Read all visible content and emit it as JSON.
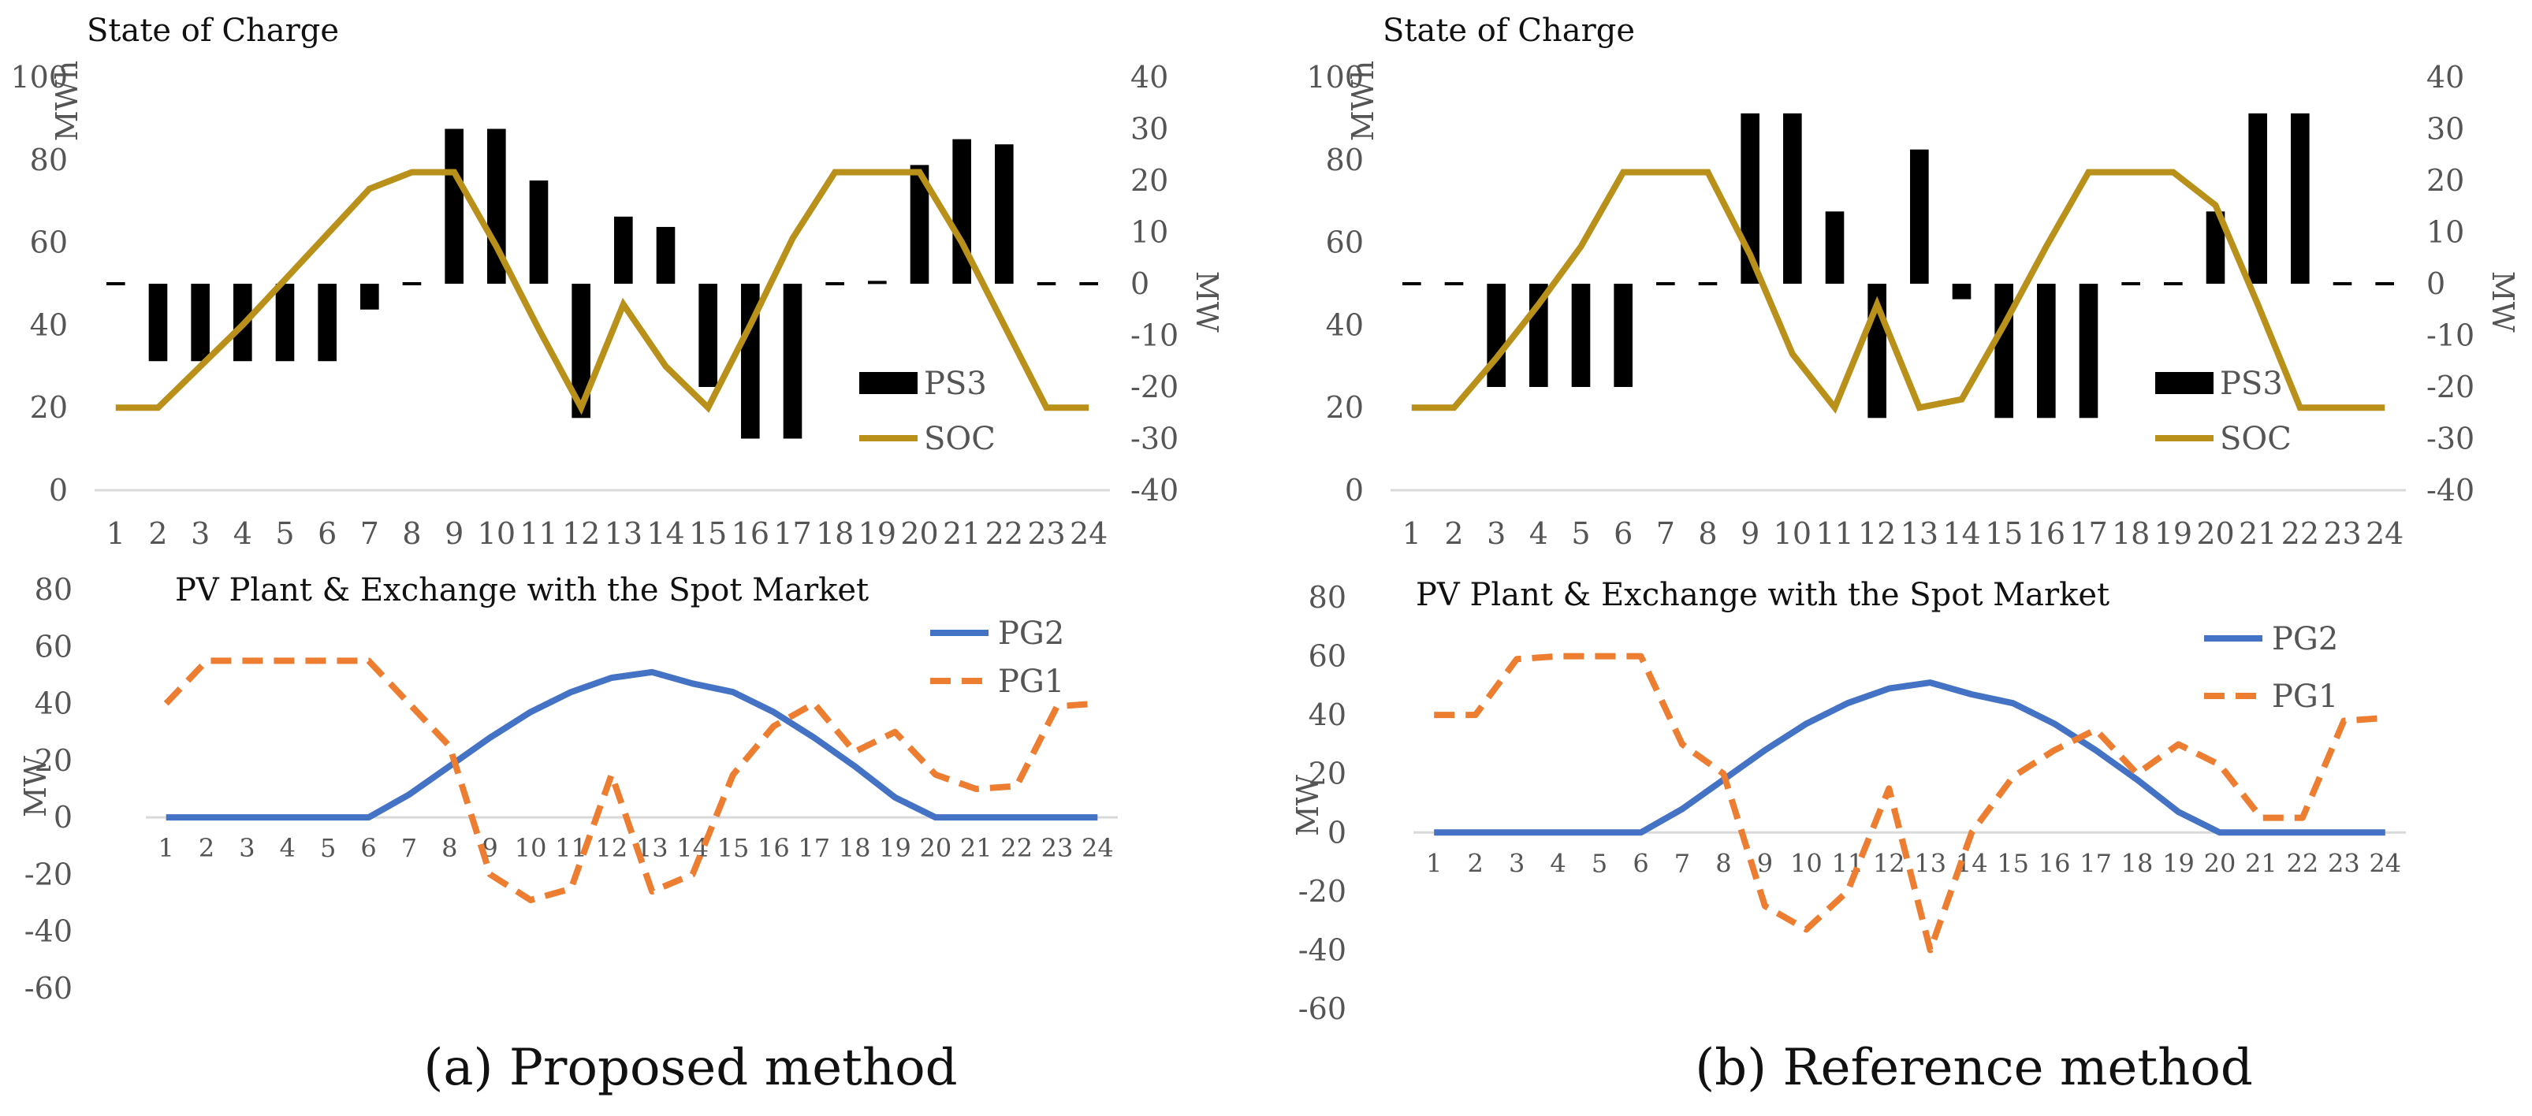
{
  "chart_data": [
    {
      "id": "a-soc",
      "type": "bar+line",
      "title": "State of Charge",
      "y_left_label": "MWh",
      "y_right_label": "MW",
      "y_left_lim": [
        0,
        100
      ],
      "y_right_lim": [
        -40,
        40
      ],
      "y_left_ticks": [
        "0",
        "20",
        "40",
        "60",
        "80",
        "100"
      ],
      "y_right_ticks": [
        "-40",
        "-30",
        "-20",
        "-10",
        "0",
        "10",
        "20",
        "30",
        "40"
      ],
      "categories": [
        "1",
        "2",
        "3",
        "4",
        "5",
        "6",
        "7",
        "8",
        "9",
        "10",
        "11",
        "12",
        "13",
        "14",
        "15",
        "16",
        "17",
        "18",
        "19",
        "20",
        "21",
        "22",
        "23",
        "24"
      ],
      "series": [
        {
          "name": "PS3",
          "type": "bar",
          "axis": "right",
          "color": "#000000",
          "values": [
            0,
            -15,
            -15,
            -15,
            -15,
            -15,
            -5,
            0,
            30,
            30,
            20,
            -26,
            13,
            11,
            -20,
            -30,
            -30,
            0,
            0.5,
            23,
            28,
            27,
            0,
            0
          ]
        },
        {
          "name": "SOC",
          "type": "line",
          "axis": "left",
          "color": "#B8901A",
          "values": [
            20,
            20,
            30,
            40,
            51,
            62,
            73,
            77,
            77,
            59,
            39,
            20,
            45,
            30,
            20,
            40,
            61,
            77,
            77,
            77,
            60,
            40,
            20,
            20
          ]
        }
      ]
    },
    {
      "id": "a-pv",
      "type": "line",
      "title": "PV Plant & Exchange with the Spot Market",
      "ylabel": "MW",
      "ylim": [
        -60,
        80
      ],
      "y_ticks": [
        "-60",
        "-40",
        "-20",
        "0",
        "20",
        "40",
        "60",
        "80"
      ],
      "categories": [
        "1",
        "2",
        "3",
        "4",
        "5",
        "6",
        "7",
        "8",
        "9",
        "10",
        "11",
        "12",
        "13",
        "14",
        "15",
        "16",
        "17",
        "18",
        "19",
        "20",
        "21",
        "22",
        "23",
        "24"
      ],
      "series": [
        {
          "name": "PG2",
          "style": "solid",
          "color": "#4472C4",
          "values": [
            0,
            0,
            0,
            0,
            0,
            0,
            8,
            18,
            28,
            37,
            44,
            49,
            51,
            47,
            44,
            37,
            28,
            18,
            7,
            0,
            0,
            0,
            0,
            0
          ]
        },
        {
          "name": "PG1",
          "style": "dashed",
          "color": "#ED7D31",
          "values": [
            40,
            55,
            55,
            55,
            55,
            55,
            40,
            25,
            -20,
            -29,
            -25,
            15,
            -26,
            -20,
            15,
            32,
            40,
            23,
            30,
            15,
            10,
            11,
            39,
            40
          ]
        }
      ]
    },
    {
      "id": "b-soc",
      "type": "bar+line",
      "title": "State of Charge",
      "y_left_label": "MWh",
      "y_right_label": "MW",
      "y_left_lim": [
        0,
        100
      ],
      "y_right_lim": [
        -40,
        40
      ],
      "y_left_ticks": [
        "0",
        "20",
        "40",
        "60",
        "80",
        "100"
      ],
      "y_right_ticks": [
        "-40",
        "-30",
        "-20",
        "-10",
        "0",
        "10",
        "20",
        "30",
        "40"
      ],
      "categories": [
        "1",
        "2",
        "3",
        "4",
        "5",
        "6",
        "7",
        "8",
        "9",
        "10",
        "11",
        "12",
        "13",
        "14",
        "15",
        "16",
        "17",
        "18",
        "19",
        "20",
        "21",
        "22",
        "23",
        "24"
      ],
      "series": [
        {
          "name": "PS3",
          "type": "bar",
          "axis": "right",
          "color": "#000000",
          "values": [
            0,
            0,
            -20,
            -20,
            -20,
            -20,
            0,
            0,
            33,
            33,
            14,
            -26,
            26,
            -3,
            -26,
            -26,
            -26,
            0,
            0,
            14,
            33,
            33,
            0,
            0
          ]
        },
        {
          "name": "SOC",
          "type": "line",
          "axis": "left",
          "color": "#B8901A",
          "values": [
            20,
            20,
            32,
            45,
            59,
            77,
            77,
            77,
            57,
            33,
            20,
            45,
            20,
            22,
            40,
            59,
            77,
            77,
            77,
            69,
            45,
            20,
            20,
            20
          ]
        }
      ]
    },
    {
      "id": "b-pv",
      "type": "line",
      "title": "PV Plant & Exchange with the Spot Market",
      "ylabel": "MW",
      "ylim": [
        -60,
        80
      ],
      "y_ticks": [
        "-60",
        "-40",
        "-20",
        "0",
        "20",
        "40",
        "60",
        "80"
      ],
      "categories": [
        "1",
        "2",
        "3",
        "4",
        "5",
        "6",
        "7",
        "8",
        "9",
        "10",
        "11",
        "12",
        "13",
        "14",
        "15",
        "16",
        "17",
        "18",
        "19",
        "20",
        "21",
        "22",
        "23",
        "24"
      ],
      "series": [
        {
          "name": "PG2",
          "style": "solid",
          "color": "#4472C4",
          "values": [
            0,
            0,
            0,
            0,
            0,
            0,
            8,
            18,
            28,
            37,
            44,
            49,
            51,
            47,
            44,
            37,
            28,
            18,
            7,
            0,
            0,
            0,
            0,
            0
          ]
        },
        {
          "name": "PG1",
          "style": "dashed",
          "color": "#ED7D31",
          "values": [
            40,
            40,
            59,
            60,
            60,
            60,
            30,
            20,
            -25,
            -33,
            -20,
            15,
            -40,
            0,
            19,
            28,
            35,
            20,
            30,
            23,
            5,
            5,
            38,
            39
          ]
        }
      ]
    }
  ],
  "captions": {
    "a": "(a) Proposed method",
    "b": "(b) Reference method"
  }
}
